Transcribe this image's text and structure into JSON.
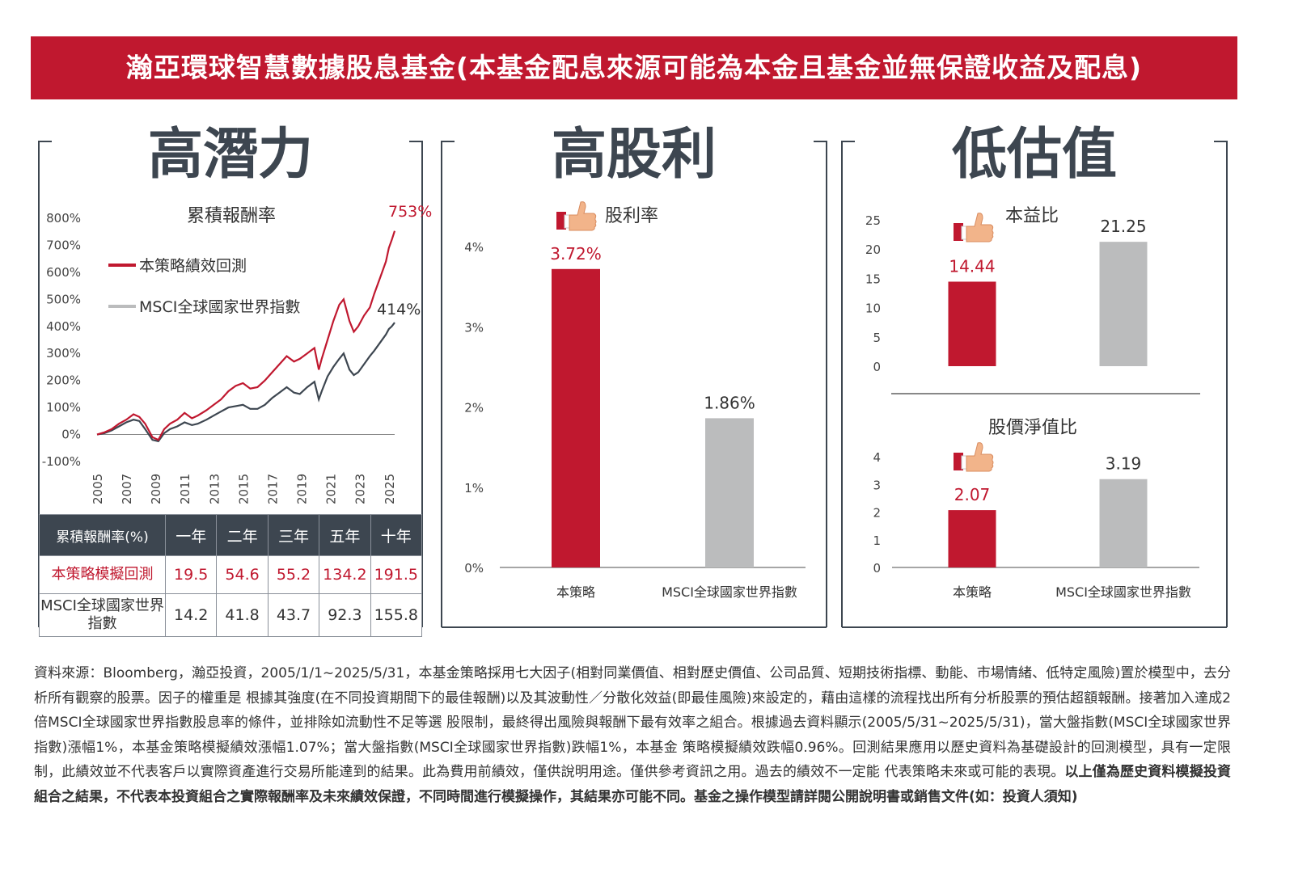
{
  "banner": {
    "title": "瀚亞環球智慧數據股息基金(本基金配息來源可能為本金且基金並無保證收益及配息)"
  },
  "panels": {
    "left": {
      "title": "高潛力"
    },
    "middle": {
      "title": "高股利"
    },
    "right": {
      "title": "低估值"
    }
  },
  "colors": {
    "accent": "#c0182f",
    "benchmark": "#bbbcbd",
    "dark": "#3d4650"
  },
  "icons": {
    "thumb": "thumbs-up-icon"
  },
  "chart_data": [
    {
      "type": "line",
      "title": "累積報酬率",
      "ylim": [
        -100,
        800
      ],
      "ytick_labels": [
        "800%",
        "700%",
        "600%",
        "500%",
        "400%",
        "300%",
        "200%",
        "100%",
        "0%",
        "-100%"
      ],
      "ytick_values": [
        800,
        700,
        600,
        500,
        400,
        300,
        200,
        100,
        0,
        -100
      ],
      "xtick_labels": [
        "2005",
        "2007",
        "2009",
        "2011",
        "2013",
        "2015",
        "2017",
        "2019",
        "2021",
        "2023",
        "2025"
      ],
      "xlim": [
        2005,
        2025.4
      ],
      "end_labels": {
        "strategy": "753%",
        "benchmark": "414%"
      },
      "series": [
        {
          "name": "本策略績效回測",
          "color": "#c0182f",
          "x": [
            2005.0,
            2005.5,
            2006.0,
            2006.5,
            2007.0,
            2007.5,
            2007.9,
            2008.3,
            2008.8,
            2009.2,
            2009.6,
            2010.0,
            2010.5,
            2011.0,
            2011.5,
            2011.9,
            2012.5,
            2013.0,
            2013.5,
            2014.0,
            2014.5,
            2015.0,
            2015.5,
            2016.0,
            2016.5,
            2017.0,
            2017.5,
            2018.0,
            2018.5,
            2018.9,
            2019.4,
            2019.9,
            2020.2,
            2020.4,
            2020.8,
            2021.2,
            2021.6,
            2021.9,
            2022.3,
            2022.6,
            2022.9,
            2023.3,
            2023.7,
            2024.0,
            2024.4,
            2024.8,
            2025.0,
            2025.2,
            2025.4
          ],
          "values": [
            0,
            8,
            20,
            40,
            55,
            75,
            65,
            40,
            -10,
            -20,
            20,
            40,
            55,
            80,
            60,
            70,
            90,
            110,
            130,
            160,
            180,
            190,
            170,
            175,
            200,
            230,
            260,
            290,
            270,
            280,
            300,
            320,
            240,
            280,
            350,
            420,
            480,
            500,
            420,
            380,
            400,
            440,
            470,
            520,
            580,
            640,
            690,
            720,
            753
          ]
        },
        {
          "name": "MSCI全球國家世界指數",
          "color": "#bbbcbd",
          "x": [
            2005.0,
            2005.5,
            2006.0,
            2006.5,
            2007.0,
            2007.5,
            2007.9,
            2008.3,
            2008.8,
            2009.2,
            2009.6,
            2010.0,
            2010.5,
            2011.0,
            2011.5,
            2011.9,
            2012.5,
            2013.0,
            2013.5,
            2014.0,
            2014.5,
            2015.0,
            2015.5,
            2016.0,
            2016.5,
            2017.0,
            2017.5,
            2018.0,
            2018.5,
            2018.9,
            2019.4,
            2019.9,
            2020.2,
            2020.4,
            2020.8,
            2021.2,
            2021.6,
            2021.9,
            2022.3,
            2022.6,
            2022.9,
            2023.3,
            2023.7,
            2024.0,
            2024.4,
            2024.8,
            2025.0,
            2025.2,
            2025.4
          ],
          "values": [
            0,
            5,
            15,
            30,
            45,
            55,
            50,
            20,
            -20,
            -25,
            5,
            20,
            30,
            45,
            35,
            40,
            55,
            70,
            85,
            100,
            105,
            110,
            95,
            95,
            110,
            135,
            155,
            175,
            155,
            150,
            175,
            195,
            130,
            160,
            215,
            250,
            280,
            300,
            240,
            220,
            230,
            260,
            290,
            310,
            340,
            370,
            390,
            400,
            414
          ]
        }
      ],
      "table": {
        "headers": [
          "累積報酬率(%)",
          "一年",
          "二年",
          "三年",
          "五年",
          "十年"
        ],
        "rows": [
          {
            "label": "本策略模擬回測",
            "values": [
              "19.5",
              "54.6",
              "55.2",
              "134.2",
              "191.5"
            ]
          },
          {
            "label": "MSCI全球國家世界指數",
            "values": [
              "14.2",
              "41.8",
              "43.7",
              "92.3",
              "155.8"
            ]
          }
        ]
      }
    },
    {
      "type": "bar",
      "title": "股利率",
      "categories": [
        "本策略",
        "MSCI全球國家世界指數"
      ],
      "values": [
        3.72,
        1.86
      ],
      "value_labels": [
        "3.72%",
        "1.86%"
      ],
      "ylim": [
        0,
        4
      ],
      "ytick_labels": [
        "4%",
        "3%",
        "2%",
        "1%",
        "0%"
      ],
      "ytick_values": [
        4,
        3,
        2,
        1,
        0
      ]
    },
    {
      "type": "bar",
      "title": "本益比",
      "categories": [
        "本策略",
        "MSCI全球國家世界指數"
      ],
      "values": [
        14.44,
        21.25
      ],
      "value_labels": [
        "14.44",
        "21.25"
      ],
      "ylim": [
        0,
        25
      ],
      "ytick_labels": [
        "25",
        "20",
        "15",
        "10",
        "5",
        "0"
      ],
      "ytick_values": [
        25,
        20,
        15,
        10,
        5,
        0
      ]
    },
    {
      "type": "bar",
      "title": "股價淨值比",
      "categories": [
        "本策略",
        "MSCI全球國家世界指數"
      ],
      "values": [
        2.07,
        3.19
      ],
      "value_labels": [
        "2.07",
        "3.19"
      ],
      "ylim": [
        0,
        4
      ],
      "ytick_labels": [
        "4",
        "3",
        "2",
        "1",
        "0"
      ],
      "ytick_values": [
        4,
        3,
        2,
        1,
        0
      ]
    }
  ],
  "footnote": {
    "normal": "資料來源：Bloomberg，瀚亞投資，2005/1/1~2025/5/31，本基金策略採用七大因子(相對同業價值、相對歷史價值、公司品質、短期技術指標、動能、市場情緒、低特定風險)置於模型中，去分析所有觀察的股票。因子的權重是 根據其強度(在不同投資期間下的最佳報酬)以及其波動性／分散化效益(即最佳風險)來設定的，藉由這樣的流程找出所有分析股票的預估超額報酬。接著加入達成2倍MSCI全球國家世界指數股息率的條件，並排除如流動性不足等選 股限制，最終得出風險與報酬下最有效率之組合。根據過去資料顯示(2005/5/31~2025/5/31)，當大盤指數(MSCI全球國家世界指數)漲幅1%，本基金策略模擬績效漲幅1.07%；當大盤指數(MSCI全球國家世界指數)跌幅1%，本基金 策略模擬績效跌幅0.96%。回測結果應用以歷史資料為基礎設計的回測模型，具有一定限制，此績效並不代表客戶以實際資產進行交易所能達到的結果。此為費用前績效，僅供說明用途。僅供參考資訊之用。過去的績效不一定能 代表策略未來或可能的表現。",
    "bold": "以上僅為歷史資料模擬投資組合之結果，不代表本投資組合之實際報酬率及未來績效保證，不同時間進行模擬操作，其結果亦可能不同。基金之操作模型請詳閱公開說明書或銷售文件(如：投資人須知)"
  }
}
